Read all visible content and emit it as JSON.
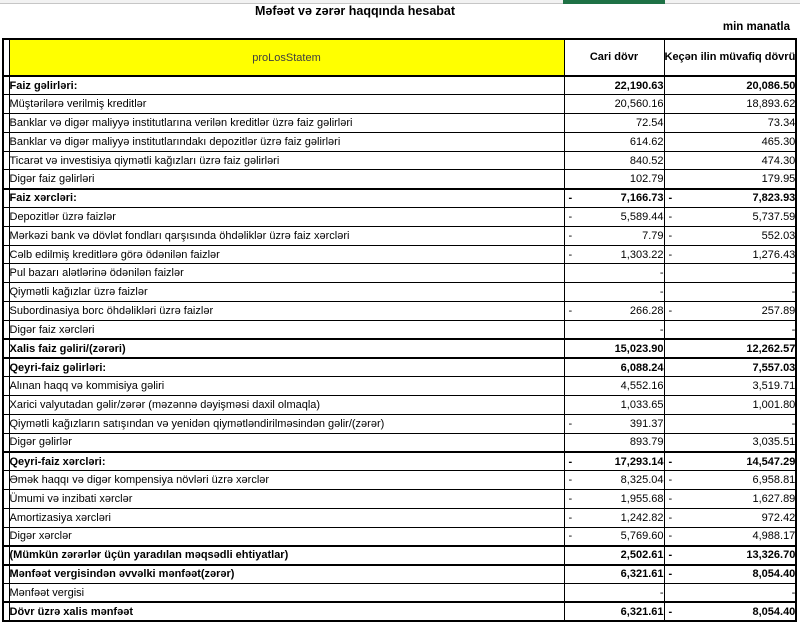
{
  "page": {
    "title": "Məfəət və zərər haqqında hesabat",
    "unit_note": "min manatla"
  },
  "colors": {
    "header_cell_bg": "#ffff00",
    "header_cell_text": "#404040",
    "accent_green": "#1e7145",
    "table_border": "#000000"
  },
  "table": {
    "header": {
      "label": "proLosStatem",
      "col_current": "Cari dövr",
      "col_previous": "Keçən ilin müvafiq dövrü"
    },
    "rows": [
      {
        "label": "Faiz gəlirləri:",
        "bold": true,
        "v1": "22,190.63",
        "v2": "20,086.50"
      },
      {
        "label": "Müştərilərə verilmiş kreditlər",
        "v1": "20,560.16",
        "v2": "18,893.62"
      },
      {
        "label": "Banklar və digər maliyyə institutlarına verilən kreditlər üzrə faiz gəlirləri",
        "v1": "72.54",
        "v2": "73.34"
      },
      {
        "label": "Banklar və digər maliyyə institutlarındakı depozitlər üzrə faiz gəlirləri",
        "v1": "614.62",
        "v2": "465.30"
      },
      {
        "label": "Ticarət və investisiya qiymətli kağızları üzrə faiz gəlirləri",
        "v1": "840.52",
        "v2": "474.30"
      },
      {
        "label": "Digər faiz gəlirləri",
        "v1": "102.79",
        "v2": "179.95"
      },
      {
        "label": "Faiz xərcləri:",
        "bold": true,
        "v1": "7,166.73",
        "n1": true,
        "v2": "7,823.93",
        "n2": true
      },
      {
        "label": "Depozitlər üzrə faizlər",
        "v1": "5,589.44",
        "n1": true,
        "v2": "5,737.59",
        "n2": true
      },
      {
        "label": "Mərkəzi bank və dövlət fondları qarşısında öhdəliklər üzrə faiz xərcləri",
        "v1": "7.79",
        "n1": true,
        "v2": "552.03",
        "n2": true
      },
      {
        "label": "Cəlb edilmiş kreditlərə görə ödənilən faizlər",
        "v1": "1,303.22",
        "n1": true,
        "v2": "1,276.43",
        "n2": true
      },
      {
        "label": "Pul bazarı alətlərinə ödənilən faizlər",
        "v1": "-",
        "v2": "-"
      },
      {
        "label": "Qiymətli kağızlar üzrə faizlər",
        "v1": "-",
        "v2": "-"
      },
      {
        "label": "Subordinasiya borc öhdəlikləri üzrə faizlər",
        "v1": "266.28",
        "n1": true,
        "v2": "257.89",
        "n2": true
      },
      {
        "label": "Digər faiz xərcləri",
        "v1": "-",
        "v2": "-"
      },
      {
        "label": "Xalis faiz gəliri/(zərəri)",
        "bold": true,
        "v1": "15,023.90",
        "v2": "12,262.57"
      },
      {
        "label": "Qeyri-faiz gəlirləri:",
        "bold": true,
        "v1": "6,088.24",
        "v2": "7,557.03"
      },
      {
        "label": "Alınan haqq və kommisiya gəliri",
        "v1": "4,552.16",
        "v2": "3,519.71"
      },
      {
        "label": "Xarici valyutadan gəlir/zərər (məzənnə dəyişməsi daxil olmaqla)",
        "v1": "1,033.65",
        "v2": "1,001.80"
      },
      {
        "label": "Qiymətli kağızların satışından və yenidən qiymətləndirilməsindən gəlir/(zərər)",
        "v1": "391.37",
        "n1": true,
        "v2": "-"
      },
      {
        "label": "Digər gəlirlər",
        "v1": "893.79",
        "v2": "3,035.51"
      },
      {
        "label": "Qeyri-faiz xərcləri:",
        "bold": true,
        "v1": "17,293.14",
        "n1": true,
        "v2": "14,547.29",
        "n2": true
      },
      {
        "label": "Əmək haqqı və digər kompensiya növləri üzrə xərclər",
        "v1": "8,325.04",
        "n1": true,
        "v2": "6,958.81",
        "n2": true
      },
      {
        "label": "Ümumi və inzibati xərclər",
        "v1": "1,955.68",
        "n1": true,
        "v2": "1,627.89",
        "n2": true
      },
      {
        "label": "Amortizasiya xərcləri",
        "v1": "1,242.82",
        "n1": true,
        "v2": "972.42",
        "n2": true
      },
      {
        "label": "Digər xərclər",
        "v1": "5,769.60",
        "n1": true,
        "v2": "4,988.17",
        "n2": true
      },
      {
        "label": "(Mümkün zərərlər üçün yaradılan məqsədli ehtiyatlar)",
        "bold": true,
        "v1": "2,502.61",
        "v2": "13,326.70",
        "n2": true
      },
      {
        "label": "Mənfəət vergisindən əvvəlki mənfəət(zərər)",
        "bold": true,
        "v1": "6,321.61",
        "v2": "8,054.40",
        "n2": true
      },
      {
        "label": "Mənfəət vergisi",
        "v1": "-",
        "v2": "-"
      },
      {
        "label": "Dövr üzrə xalis mənfəət",
        "bold": true,
        "v1": "6,321.61",
        "v2": "8,054.40",
        "n2": true
      }
    ]
  }
}
